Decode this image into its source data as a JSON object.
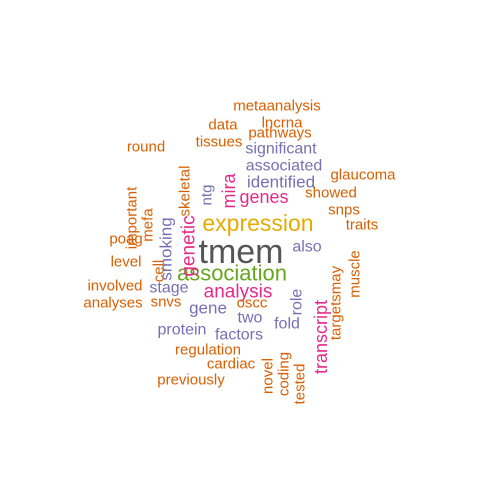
{
  "colors": {
    "orange": "#d95f02",
    "purple": "#7570b3",
    "magenta": "#e7298a",
    "green": "#66a61e",
    "gold": "#e6ab02",
    "gray": "#555555"
  },
  "words": [
    {
      "text": "tmem",
      "color": "gray",
      "rotated": false
    },
    {
      "text": "expression",
      "color": "gold",
      "rotated": false
    },
    {
      "text": "association",
      "color": "green",
      "rotated": false
    },
    {
      "text": "analysis",
      "color": "magenta",
      "rotated": false
    },
    {
      "text": "genes",
      "color": "magenta",
      "rotated": false
    },
    {
      "text": "genetic",
      "color": "magenta",
      "rotated": true
    },
    {
      "text": "mira",
      "color": "magenta",
      "rotated": true
    },
    {
      "text": "transcript",
      "color": "magenta",
      "rotated": true
    },
    {
      "text": "smoking",
      "color": "purple",
      "rotated": true
    },
    {
      "text": "identified",
      "color": "purple",
      "rotated": false
    },
    {
      "text": "gene",
      "color": "purple",
      "rotated": false
    },
    {
      "text": "associated",
      "color": "purple",
      "rotated": false
    },
    {
      "text": "significant",
      "color": "purple",
      "rotated": false
    },
    {
      "text": "also",
      "color": "purple",
      "rotated": false
    },
    {
      "text": "stage",
      "color": "purple",
      "rotated": false
    },
    {
      "text": "two",
      "color": "purple",
      "rotated": false
    },
    {
      "text": "factors",
      "color": "purple",
      "rotated": false
    },
    {
      "text": "protein",
      "color": "purple",
      "rotated": false
    },
    {
      "text": "fold",
      "color": "purple",
      "rotated": false
    },
    {
      "text": "role",
      "color": "purple",
      "rotated": true
    },
    {
      "text": "ntg",
      "color": "purple",
      "rotated": true
    },
    {
      "text": "metaanalysis",
      "color": "orange",
      "rotated": false
    },
    {
      "text": "lncrna",
      "color": "orange",
      "rotated": false
    },
    {
      "text": "data",
      "color": "orange",
      "rotated": false
    },
    {
      "text": "pathways",
      "color": "orange",
      "rotated": false
    },
    {
      "text": "tissues",
      "color": "orange",
      "rotated": false
    },
    {
      "text": "round",
      "color": "orange",
      "rotated": false
    },
    {
      "text": "skeletal",
      "color": "orange",
      "rotated": true
    },
    {
      "text": "glaucoma",
      "color": "orange",
      "rotated": false
    },
    {
      "text": "showed",
      "color": "orange",
      "rotated": false
    },
    {
      "text": "snps",
      "color": "orange",
      "rotated": false
    },
    {
      "text": "traits",
      "color": "orange",
      "rotated": false
    },
    {
      "text": "muscle",
      "color": "orange",
      "rotated": true
    },
    {
      "text": "targetsmay",
      "color": "orange",
      "rotated": true
    },
    {
      "text": "important",
      "color": "orange",
      "rotated": true
    },
    {
      "text": "mefa",
      "color": "orange",
      "rotated": true
    },
    {
      "text": "poag",
      "color": "orange",
      "rotated": false
    },
    {
      "text": "cell",
      "color": "orange",
      "rotated": true
    },
    {
      "text": "level",
      "color": "orange",
      "rotated": false
    },
    {
      "text": "involved",
      "color": "orange",
      "rotated": false
    },
    {
      "text": "snvs",
      "color": "orange",
      "rotated": false
    },
    {
      "text": "analyses",
      "color": "orange",
      "rotated": false
    },
    {
      "text": "oscc",
      "color": "orange",
      "rotated": false
    },
    {
      "text": "regulation",
      "color": "orange",
      "rotated": false
    },
    {
      "text": "cardiac",
      "color": "orange",
      "rotated": false
    },
    {
      "text": "previously",
      "color": "orange",
      "rotated": false
    },
    {
      "text": "novel",
      "color": "orange",
      "rotated": true
    },
    {
      "text": "coding",
      "color": "orange",
      "rotated": true
    },
    {
      "text": "tested",
      "color": "orange",
      "rotated": true
    }
  ]
}
